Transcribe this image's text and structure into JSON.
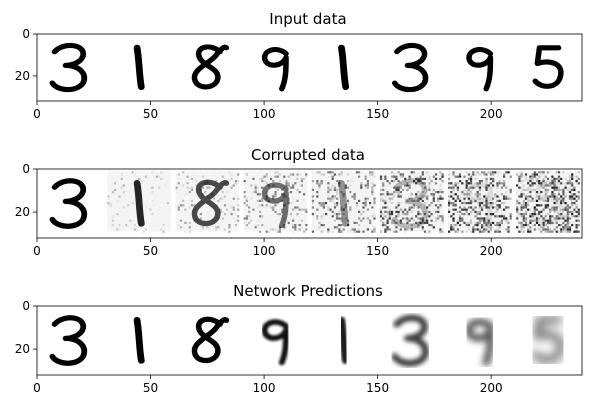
{
  "chart_data": [
    {
      "type": "heatmap",
      "title": "Input data",
      "colormap": "Greys",
      "xlim": [
        0,
        240
      ],
      "ylim": [
        32,
        0
      ],
      "xticks": [
        0,
        50,
        100,
        150,
        200
      ],
      "yticks": [
        0,
        20
      ],
      "panel_width": 30,
      "panel_gap": 2,
      "digits": [
        3,
        1,
        8,
        9,
        1,
        3,
        9,
        5
      ],
      "noise_levels": [
        0,
        0,
        0,
        0,
        0,
        0,
        0,
        0
      ],
      "blur_levels": [
        0,
        0,
        0,
        0,
        0,
        0,
        0,
        0
      ]
    },
    {
      "type": "heatmap",
      "title": "Corrupted data",
      "colormap": "Greys",
      "xlim": [
        0,
        240
      ],
      "ylim": [
        32,
        0
      ],
      "xticks": [
        0,
        50,
        100,
        150,
        200
      ],
      "yticks": [
        0,
        20
      ],
      "panel_width": 30,
      "panel_gap": 2,
      "digits": [
        3,
        1,
        8,
        9,
        1,
        3,
        9,
        5
      ],
      "noise_levels": [
        0.0,
        0.14,
        0.29,
        0.43,
        0.57,
        0.71,
        0.86,
        1.0
      ],
      "blur_levels": [
        0,
        0,
        0,
        0,
        0,
        0,
        0,
        0
      ]
    },
    {
      "type": "heatmap",
      "title": "Network Predictions",
      "colormap": "Greys",
      "xlim": [
        0,
        240
      ],
      "ylim": [
        32,
        0
      ],
      "xticks": [
        0,
        50,
        100,
        150,
        200
      ],
      "yticks": [
        0,
        20
      ],
      "panel_width": 30,
      "panel_gap": 2,
      "digits": [
        3,
        1,
        8,
        9,
        1,
        3,
        9,
        5
      ],
      "noise_levels": [
        0,
        0,
        0,
        0,
        0,
        0,
        0,
        0
      ],
      "blur_levels": [
        0,
        0,
        0,
        0.1,
        0.2,
        0.45,
        0.6,
        0.8
      ]
    }
  ]
}
